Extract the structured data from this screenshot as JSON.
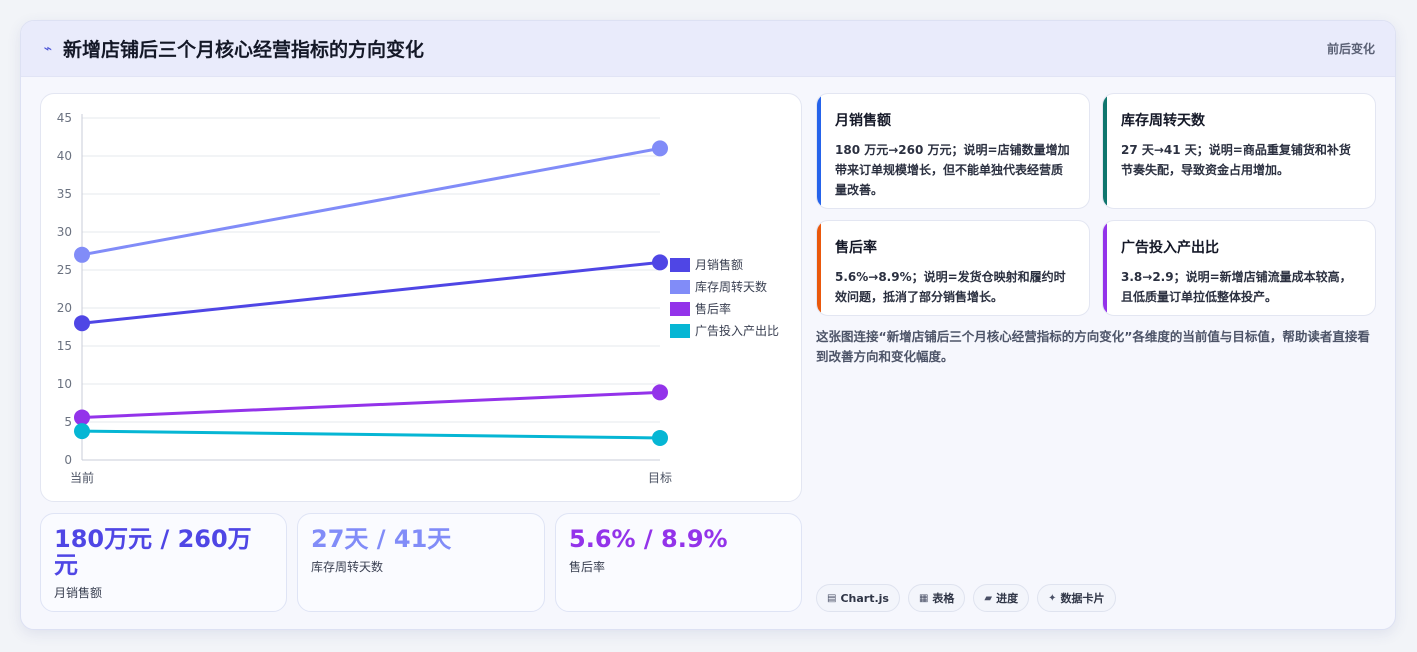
{
  "header": {
    "title": "新增店铺后三个月核心经营指标的方向变化",
    "tag": "前后变化",
    "icon": "trend-icon"
  },
  "chart_data": {
    "type": "line",
    "categories": [
      "当前",
      "目标"
    ],
    "ylim": [
      0,
      45
    ],
    "yticks": [
      0,
      5,
      10,
      15,
      20,
      25,
      30,
      35,
      40,
      45
    ],
    "grid": true,
    "legend_position": "right",
    "series": [
      {
        "name": "月销售额",
        "values": [
          18,
          26
        ],
        "color": "#4f46e5"
      },
      {
        "name": "库存周转天数",
        "values": [
          27,
          41
        ],
        "color": "#818cf8"
      },
      {
        "name": "售后率",
        "values": [
          5.6,
          8.9
        ],
        "color": "#9333ea"
      },
      {
        "name": "广告投入产出比",
        "values": [
          3.8,
          2.9
        ],
        "color": "#06b6d4"
      }
    ]
  },
  "stats": [
    {
      "value": "180万元 / 260万元",
      "label": "月销售额",
      "color": "#4f46e5"
    },
    {
      "value": "27天 / 41天",
      "label": "库存周转天数",
      "color": "#818cf8"
    },
    {
      "value": "5.6% / 8.9%",
      "label": "售后率",
      "color": "#9333ea"
    }
  ],
  "metrics": [
    {
      "title": "月销售额",
      "desc": "180 万元→260 万元；说明=店铺数量增加带来订单规模增长，但不能单独代表经营质量改善。",
      "accent": "#2563eb"
    },
    {
      "title": "库存周转天数",
      "desc": "27 天→41 天；说明=商品重复铺货和补货节奏失配，导致资金占用增加。",
      "accent": "#0f766e"
    },
    {
      "title": "售后率",
      "desc": "5.6%→8.9%；说明=发货仓映射和履约时效问题，抵消了部分销售增长。",
      "accent": "#ea580c"
    },
    {
      "title": "广告投入产出比",
      "desc": "3.8→2.9；说明=新增店铺流量成本较高，且低质量订单拉低整体投产。",
      "accent": "#9333ea"
    }
  ],
  "caption": "这张图连接“新增店铺后三个月核心经营指标的方向变化”各维度的当前值与目标值，帮助读者直接看到改善方向和变化幅度。",
  "tags": [
    {
      "icon": "chart-icon",
      "glyph": "▤",
      "label": "Chart.js"
    },
    {
      "icon": "table-icon",
      "glyph": "▦",
      "label": "表格"
    },
    {
      "icon": "progress-icon",
      "glyph": "▰",
      "label": "进度"
    },
    {
      "icon": "card-icon",
      "glyph": "✦",
      "label": "数据卡片"
    }
  ]
}
